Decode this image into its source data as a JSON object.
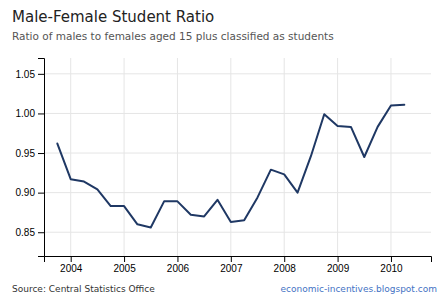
{
  "chart_data": {
    "type": "line",
    "title": "Male-Female Student Ratio",
    "subtitle": "Ratio of males to females aged 15 plus classified as students",
    "annotations": [
      "Source: Central Statistics Office",
      "economic-incentives.blogspot.com"
    ],
    "x": [
      2003.75,
      2004.0,
      2004.25,
      2004.5,
      2004.75,
      2005.0,
      2005.25,
      2005.5,
      2005.75,
      2006.0,
      2006.25,
      2006.5,
      2006.75,
      2007.0,
      2007.25,
      2007.5,
      2007.75,
      2008.0,
      2008.25,
      2008.5,
      2008.75,
      2009.0,
      2009.25,
      2009.5,
      2009.75,
      2010.0,
      2010.25
    ],
    "values": [
      0.962,
      0.917,
      0.914,
      0.904,
      0.883,
      0.883,
      0.86,
      0.856,
      0.889,
      0.889,
      0.872,
      0.87,
      0.891,
      0.863,
      0.865,
      0.894,
      0.929,
      0.923,
      0.9,
      0.946,
      0.999,
      0.984,
      0.983,
      0.945,
      0.983,
      1.01,
      1.011
    ],
    "color": "#1f3864",
    "xlim": [
      2003.5,
      2010.75
    ],
    "xticks": [
      2004,
      2005,
      2006,
      2007,
      2008,
      2009,
      2010
    ],
    "ylim": [
      0.82,
      1.07
    ],
    "yticks": [
      0.85,
      {
        "value": 0.9,
        "label": "0.90"
      },
      0.95,
      {
        "value": 1,
        "label": "1.00"
      },
      1.05
    ],
    "grid": true
  }
}
